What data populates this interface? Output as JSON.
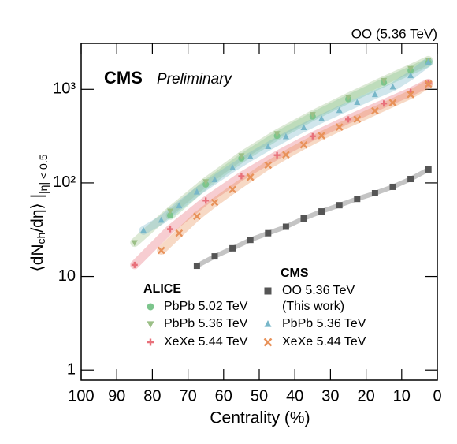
{
  "chart_data": {
    "type": "scatter",
    "corner_label": "OO (5.36 TeV)",
    "title": "CMS",
    "subtitle": "Preliminary",
    "x_label": "Centrality (%)",
    "y_label_parts": [
      "⟨dN",
      "ch",
      "/dη⟩ |",
      "|η| < 0.5"
    ],
    "log_y": true,
    "x_reversed": true,
    "xlim": [
      100,
      0
    ],
    "xticks": [
      100,
      90,
      80,
      70,
      60,
      50,
      40,
      30,
      20,
      10,
      0
    ],
    "ylim": [
      0.78,
      3100
    ],
    "yticks": [
      1,
      10,
      {
        "value": 100,
        "label": "10²"
      },
      {
        "value": 1000,
        "label": "10³"
      }
    ],
    "legend_titles": [
      "ALICE",
      "CMS"
    ],
    "series": [
      {
        "name": "PbPb 5.02 TeV",
        "color": "#7cc58c",
        "marker": "circle",
        "x": [
          75,
          65,
          55,
          45,
          35,
          25,
          15,
          7.5,
          2.5
        ],
        "values": [
          44.9,
          96.3,
          183,
          318,
          512,
          786,
          1180,
          1587,
          1943
        ]
      },
      {
        "name": "PbPb 5.36 TeV",
        "color": "#9bbf86",
        "marker": "triangle-down",
        "x": [
          85,
          75,
          65,
          55,
          45,
          35,
          25,
          15,
          7.5,
          2.5
        ],
        "values": [
          23,
          50,
          103,
          195,
          336,
          537,
          825,
          1244,
          1668,
          2047
        ]
      },
      {
        "name": "XeXe 5.44 TeV",
        "color": "#e8707a",
        "marker": "plus",
        "x": [
          85,
          75,
          65,
          55,
          45,
          35,
          25,
          15,
          7.5,
          2.5
        ],
        "values": [
          13.3,
          32.0,
          64.7,
          118,
          198,
          315,
          478,
          706,
          939,
          1167
        ]
      },
      {
        "name": "OO 5.36 TeV",
        "note": "(This work)",
        "color": "#555555",
        "marker": "square",
        "x": [
          67.5,
          62.5,
          57.5,
          52.5,
          47.5,
          42.5,
          37.5,
          32.5,
          27.5,
          22.5,
          17.5,
          12.5,
          7.5,
          2.5
        ],
        "values": [
          13,
          16.4,
          20,
          24.6,
          29,
          34,
          41.7,
          49.6,
          57.8,
          67.5,
          77.6,
          90.7,
          110,
          139
        ]
      },
      {
        "name": "PbPb 5.36 TeV",
        "color": "#78b7c9",
        "marker": "triangle-up",
        "x": [
          82.5,
          77.5,
          72.5,
          67.5,
          62.5,
          57.5,
          52.5,
          47.5,
          42.5,
          37.5,
          32.5,
          27.5,
          22.5,
          17.5,
          12.5,
          7.5,
          2.5
        ],
        "values": [
          31,
          40,
          57,
          80,
          108,
          145,
          190,
          245,
          312,
          390,
          485,
          595,
          725,
          880,
          1060,
          1400,
          1960
        ]
      },
      {
        "name": "XeXe 5.44 TeV",
        "color": "#e8925a",
        "marker": "cross",
        "x": [
          77.5,
          72.5,
          67.5,
          62.5,
          57.5,
          52.5,
          47.5,
          42.5,
          37.5,
          32.5,
          27.5,
          22.5,
          17.5,
          12.5,
          7.5,
          2.5
        ],
        "values": [
          19,
          29,
          44,
          62,
          85,
          115,
          155,
          200,
          255,
          320,
          395,
          480,
          590,
          720,
          880,
          1140
        ]
      }
    ]
  }
}
